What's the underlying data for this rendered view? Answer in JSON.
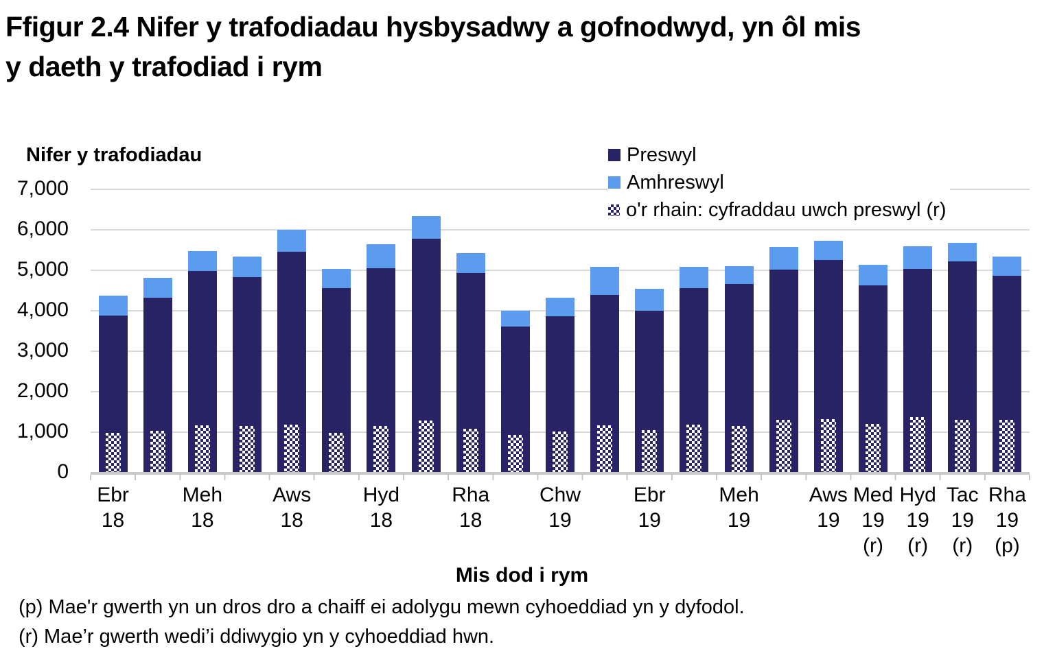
{
  "figure": {
    "title_lines": [
      "Ffigur 2.4  Nifer y trafodiadau hysbysadwy a gofnodwyd, yn ôl mis",
      "y daeth y trafodiad i rym"
    ]
  },
  "y_axis": {
    "title": "Nifer y trafodiadau",
    "tick_labels": [
      "7,000",
      "6,000",
      "5,000",
      "4,000",
      "3,000",
      "2,000",
      "1,000",
      "0"
    ],
    "min": 0,
    "max": 7000
  },
  "x_axis": {
    "title": "Mis dod i rym"
  },
  "legend": {
    "items": [
      {
        "label": "Preswyl",
        "swatch": "navy-square-icon",
        "color": "#282364"
      },
      {
        "label": "Amhreswyl",
        "swatch": "lightblue-square-icon",
        "color": "#5C9CEE"
      },
      {
        "label": "o'r rhain: cyfraddau uwch preswyl (r)",
        "swatch": "checker-square-icon",
        "pattern": "checkerboard"
      }
    ]
  },
  "footnotes": [
    "(p) Mae'r gwerth yn un dros dro a chaiff ei adolygu mewn cyhoeddiad yn y dyfodol.",
    "(r) Mae’r gwerth wedi’i ddiwygio yn y cyhoeddiad hwn."
  ],
  "colors": {
    "preswyl_navy": "#282364",
    "amhreswyl_blue": "#5C9CEE",
    "gridline": "#D9D9D9",
    "axis_line": "#C9C9C9",
    "text": "#000000"
  },
  "chart_data": {
    "type": "bar",
    "stacked": true,
    "title": "Ffigur 2.4  Nifer y trafodiadau hysbysadwy a gofnodwyd, yn ôl mis y daeth y trafodiad i rym",
    "xlabel": "Mis dod i rym",
    "ylabel": "Nifer y trafodiadau",
    "ylim": [
      0,
      7000
    ],
    "ytick_step": 1000,
    "grid": true,
    "legend_position": "top-right",
    "n_bars": 21,
    "x_tick_labels_visible": [
      "Ebr 18",
      "Meh 18",
      "Aws 18",
      "Hyd 18",
      "Rha 18",
      "Chw 19",
      "Ebr 19",
      "Meh 19",
      "Aws 19",
      "Med 19 (r)",
      "Hyd 19 (r)",
      "Tac 19 (r)",
      "Rha 19 (p)"
    ],
    "x_tick_lines": [
      [
        "Ebr",
        "18"
      ],
      [],
      [
        "Meh",
        "18"
      ],
      [],
      [
        "Aws",
        "18"
      ],
      [],
      [
        "Hyd",
        "18"
      ],
      [],
      [
        "Rha",
        "18"
      ],
      [],
      [
        "Chw",
        "19"
      ],
      [],
      [
        "Ebr",
        "19"
      ],
      [],
      [
        "Meh",
        "19"
      ],
      [],
      [
        "Aws",
        "19"
      ],
      [
        "Med",
        "19",
        "(r)"
      ],
      [
        "Hyd",
        "19",
        "(r)"
      ],
      [
        "Tac",
        "19",
        "(r)"
      ],
      [
        "Rha",
        "19",
        "(p)"
      ]
    ],
    "series": [
      {
        "name": "Preswyl",
        "role": "stack-base",
        "values": [
          3870,
          4310,
          4970,
          4820,
          5440,
          4540,
          5030,
          5770,
          4910,
          3590,
          3850,
          4370,
          3990,
          4550,
          4640,
          5000,
          5230,
          4610,
          5020,
          5200,
          4850
        ]
      },
      {
        "name": "Amhreswyl",
        "role": "stack-top",
        "values": [
          480,
          480,
          480,
          510,
          550,
          470,
          590,
          560,
          500,
          400,
          450,
          690,
          540,
          510,
          450,
          560,
          480,
          510,
          550,
          460,
          480
        ]
      },
      {
        "name": "o'r rhain: cyfraddau uwch preswyl (r)",
        "role": "overlay-from-zero",
        "values": [
          970,
          1010,
          1150,
          1130,
          1170,
          960,
          1140,
          1270,
          1060,
          920,
          1000,
          1150,
          1030,
          1170,
          1130,
          1280,
          1300,
          1190,
          1350,
          1280,
          1290
        ]
      }
    ]
  }
}
